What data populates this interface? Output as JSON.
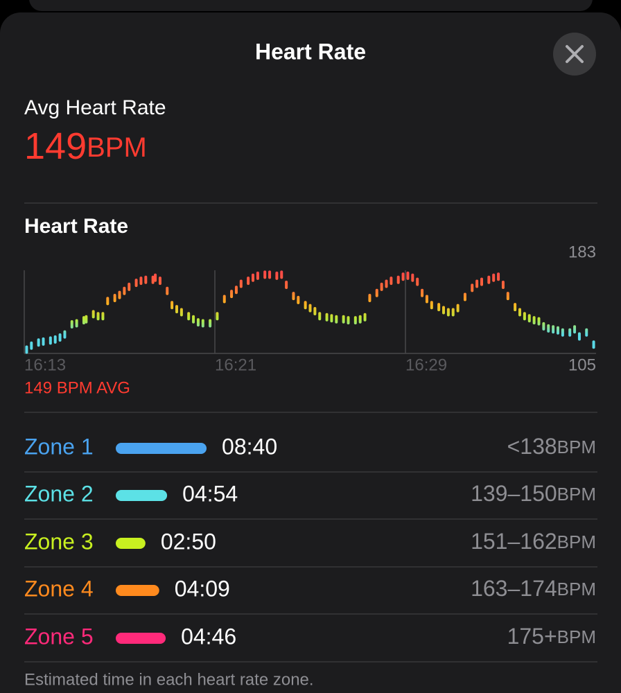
{
  "header": {
    "title": "Heart Rate"
  },
  "summary": {
    "label": "Avg Heart Rate",
    "value": 149,
    "unit": "BPM"
  },
  "chart_data": {
    "type": "scatter",
    "title": "Heart Rate",
    "avg_label": "149 BPM AVG",
    "x": [
      973.1,
      973.3,
      973.6,
      973.8,
      974.1,
      974.3,
      974.5,
      974.7,
      975.0,
      975.2,
      975.5,
      975.6,
      975.9,
      976.1,
      976.3,
      976.5,
      976.8,
      977.0,
      977.2,
      977.4,
      977.7,
      977.9,
      978.1,
      978.4,
      978.5,
      978.7,
      979.0,
      979.2,
      979.4,
      979.6,
      979.9,
      980.1,
      980.3,
      980.5,
      980.8,
      981.1,
      981.4,
      981.7,
      981.9,
      982.1,
      982.4,
      982.6,
      982.8,
      983.1,
      983.3,
      983.6,
      983.8,
      984.0,
      984.3,
      984.5,
      984.8,
      985.0,
      985.2,
      985.4,
      985.7,
      985.9,
      986.1,
      986.4,
      986.6,
      986.9,
      987.1,
      987.3,
      987.5,
      987.8,
      988.0,
      988.2,
      988.4,
      988.7,
      988.9,
      989.1,
      989.3,
      989.5,
      989.7,
      989.9,
      990.1,
      990.4,
      990.6,
      990.8,
      991.0,
      991.2,
      991.5,
      991.8,
      992.0,
      992.2,
      992.5,
      992.7,
      992.9,
      993.1,
      993.3,
      993.6,
      993.8,
      994.0,
      994.2,
      994.4,
      994.6,
      994.8,
      995.0,
      995.2,
      995.4,
      995.6,
      995.9,
      996.1,
      996.3,
      996.6,
      996.9
    ],
    "values": [
      106,
      110,
      113,
      114,
      115,
      116,
      118,
      121,
      131,
      132,
      135,
      136,
      141,
      139,
      139,
      154,
      157,
      160,
      164,
      168,
      172,
      174,
      175,
      175,
      177,
      174,
      164,
      150,
      146,
      143,
      139,
      136,
      133,
      132,
      132,
      139,
      156,
      161,
      165,
      171,
      174,
      177,
      179,
      180,
      180,
      179,
      180,
      170,
      159,
      155,
      150,
      147,
      144,
      139,
      138,
      137,
      136,
      136,
      135,
      135,
      136,
      138,
      157,
      162,
      168,
      171,
      174,
      175,
      178,
      179,
      177,
      173,
      162,
      156,
      150,
      148,
      145,
      143,
      143,
      147,
      158,
      167,
      171,
      173,
      175,
      177,
      178,
      170,
      159,
      148,
      143,
      139,
      137,
      135,
      134,
      129,
      127,
      126,
      125,
      123,
      123,
      126,
      119,
      123,
      111
    ],
    "xlim": [
      973,
      997
    ],
    "xticks": [
      {
        "value": 973,
        "label": "16:13"
      },
      {
        "value": 981,
        "label": "16:21"
      },
      {
        "value": 989,
        "label": "16:29"
      }
    ],
    "ylim": [
      105,
      183
    ],
    "yticks": [
      105,
      183
    ],
    "colors": [
      "#5ad8e6",
      "#5ad8e6",
      "#b8e83a",
      "#ffb020",
      "#ff6a3a",
      "#ff4848"
    ],
    "grid": true
  },
  "zones": [
    {
      "name": "Zone 1",
      "color": "#4aa3f0",
      "duration": "08:40",
      "range": "<138",
      "unit": "BPM"
    },
    {
      "name": "Zone 2",
      "color": "#5ce1e6",
      "duration": "04:54",
      "range": "139–150",
      "unit": "BPM"
    },
    {
      "name": "Zone 3",
      "color": "#c8f020",
      "duration": "02:50",
      "range": "151–162",
      "unit": "BPM"
    },
    {
      "name": "Zone 4",
      "color": "#ff8a1e",
      "duration": "04:09",
      "range": "163–174",
      "unit": "BPM"
    },
    {
      "name": "Zone 5",
      "color": "#ff2a7a",
      "duration": "04:46",
      "range": "175+",
      "unit": "BPM"
    }
  ],
  "footnote": "Estimated time in each heart rate zone."
}
